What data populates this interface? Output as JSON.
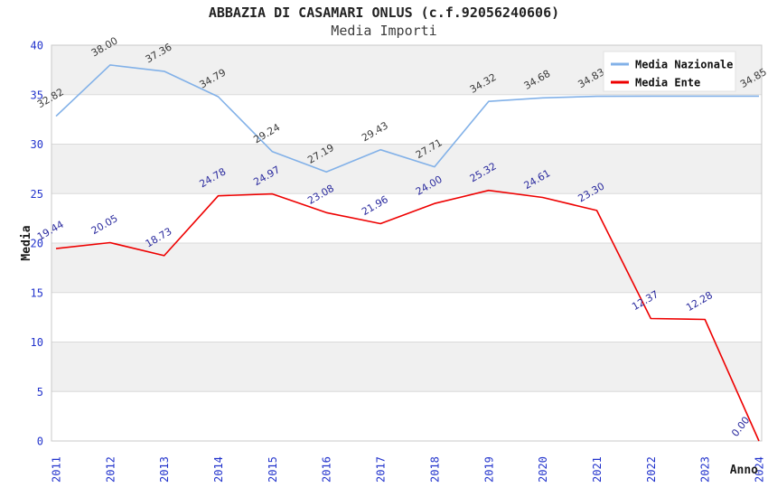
{
  "chart_data": {
    "type": "line",
    "title": "ABBAZIA DI CASAMARI ONLUS (c.f.92056240606)",
    "subtitle": "Media Importi",
    "xlabel": "Anno",
    "ylabel": "Media",
    "x": [
      "2011",
      "2012",
      "2013",
      "2014",
      "2015",
      "2016",
      "2017",
      "2018",
      "2019",
      "2020",
      "2021",
      "2022",
      "2023",
      "2024"
    ],
    "ylim": [
      0,
      40
    ],
    "ytick_step": 5,
    "yticks": [
      "0",
      "5",
      "10",
      "15",
      "20",
      "25",
      "30",
      "35",
      "40"
    ],
    "grid": "alternating-horizontal-bands",
    "legend_position": "top-right-inside",
    "colors": {
      "axis_tick": "#2233cc",
      "band_gray": "#f0f0f0",
      "grid_line": "#dadada",
      "plot_border": "#c8c8c8",
      "legend_bg": "#ffffff",
      "legend_border": "#e2e2e2"
    },
    "series": [
      {
        "name": "Media Nazionale",
        "color": "#82b1e8",
        "label_color": "#3a3a3a",
        "values": [
          32.82,
          38.0,
          37.36,
          34.79,
          29.24,
          27.19,
          29.43,
          27.71,
          34.32,
          34.68,
          34.83,
          34.85,
          34.85,
          34.85
        ],
        "labels": [
          "32.82",
          "38.00",
          "37.36",
          "34.79",
          "29.24",
          "27.19",
          "29.43",
          "27.71",
          "34.32",
          "34.68",
          "34.83",
          "",
          "",
          "34.85"
        ]
      },
      {
        "name": "Media Ente",
        "color": "#ee0000",
        "label_color": "#2a2a9e",
        "values": [
          19.44,
          20.05,
          18.73,
          24.78,
          24.97,
          23.08,
          21.96,
          24.0,
          25.32,
          24.61,
          23.3,
          12.37,
          12.28,
          0.0
        ],
        "labels": [
          "19.44",
          "20.05",
          "18.73",
          "24.78",
          "24.97",
          "23.08",
          "21.96",
          "24.00",
          "25.32",
          "24.61",
          "23.30",
          "12.37",
          "12.28",
          "0.00"
        ]
      }
    ]
  }
}
